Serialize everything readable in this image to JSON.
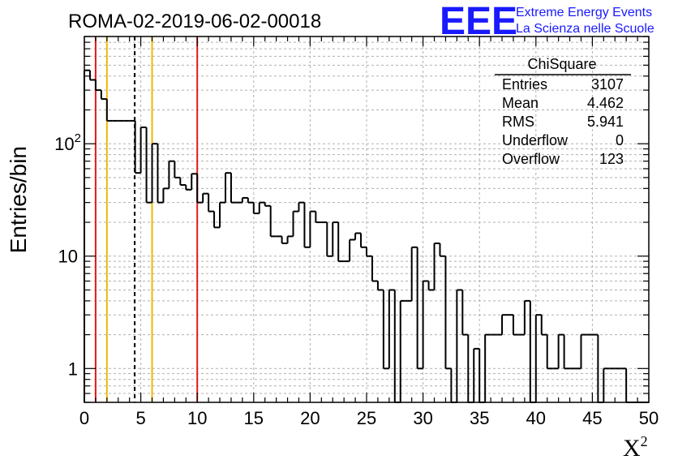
{
  "title": "ROMA-02-2019-06-02-00018",
  "logo": {
    "mark": "EEE",
    "line1": "Extreme Energy Events",
    "line2": "La Scienza nelle Scuole",
    "color": "#1a1aff"
  },
  "stats": {
    "name": "ChiSquare",
    "rows": [
      {
        "label": "Entries",
        "value": "3107"
      },
      {
        "label": "Mean",
        "value": "4.462"
      },
      {
        "label": "RMS",
        "value": "5.941"
      },
      {
        "label": "Underflow",
        "value": "0"
      },
      {
        "label": "Overflow",
        "value": "123"
      }
    ]
  },
  "chart_data": {
    "type": "histogram",
    "title": "ROMA-02-2019-06-02-00018",
    "xlabel": "X",
    "xlabel_sup": "2",
    "ylabel": "Entries/bin",
    "xlim": [
      0,
      50
    ],
    "ylim": [
      0.5,
      900
    ],
    "yscale": "log",
    "grid": true,
    "bin_width": 0.5,
    "x_ticks": [
      "0",
      "5",
      "10",
      "15",
      "20",
      "25",
      "30",
      "35",
      "40",
      "45",
      "50"
    ],
    "y_ticks": [
      {
        "value": 1,
        "base": "1",
        "exp": ""
      },
      {
        "value": 10,
        "base": "10",
        "exp": ""
      },
      {
        "value": 100,
        "base": "10",
        "exp": "2"
      }
    ],
    "counts": [
      450,
      370,
      300,
      250,
      160,
      160,
      160,
      160,
      160,
      55,
      140,
      30,
      100,
      30,
      40,
      70,
      50,
      43,
      39,
      54,
      30,
      36,
      25,
      18,
      30,
      55,
      30,
      30,
      33,
      30,
      24,
      30,
      28,
      15,
      15,
      13,
      15,
      25,
      30,
      12,
      25,
      20,
      20,
      10,
      20,
      9,
      9,
      14,
      16,
      12,
      10,
      6,
      5,
      1,
      5,
      0,
      4,
      4,
      12,
      1,
      6,
      5,
      13,
      10,
      1,
      0,
      5,
      2,
      0,
      1.5,
      0,
      2,
      2,
      2,
      3,
      3,
      2,
      2,
      4,
      0,
      3,
      2,
      1,
      1,
      2,
      1,
      1,
      1,
      2,
      2,
      2,
      0,
      1,
      1,
      1,
      1,
      0,
      0,
      0,
      0
    ],
    "vertical_lines": [
      {
        "x": 1,
        "color": "#e31a1a",
        "style": "solid"
      },
      {
        "x": 2,
        "color": "#f0b800",
        "style": "solid"
      },
      {
        "x": 4.462,
        "color": "#000000",
        "style": "dashed"
      },
      {
        "x": 6,
        "color": "#f0b800",
        "style": "solid"
      },
      {
        "x": 10,
        "color": "#e31a1a",
        "style": "solid"
      }
    ]
  }
}
